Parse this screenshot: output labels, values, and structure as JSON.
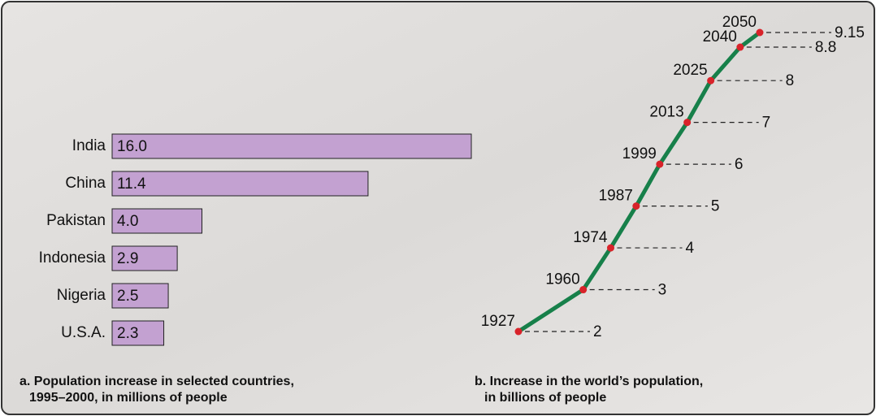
{
  "chart_data": [
    {
      "type": "bar",
      "orientation": "horizontal",
      "caption": [
        "a. Population increase in selected countries,",
        "1995–2000, in millions of people"
      ],
      "categories": [
        "India",
        "China",
        "Pakistan",
        "Indonesia",
        "Nigeria",
        "U.S.A."
      ],
      "values": [
        16.0,
        11.4,
        4.0,
        2.9,
        2.5,
        2.3
      ],
      "value_labels": [
        "16.0",
        "11.4",
        "4.0",
        "2.9",
        "2.5",
        "2.3"
      ],
      "color": "#c3a1d1"
    },
    {
      "type": "line",
      "caption": [
        "b. Increase in the world’s population,",
        "in billions of people"
      ],
      "x": [
        1927,
        1960,
        1974,
        1987,
        1999,
        2013,
        2025,
        2040,
        2050
      ],
      "values": [
        2,
        3,
        4,
        5,
        6,
        7,
        8,
        8.8,
        9.15
      ],
      "color": "#17804a",
      "marker_color": "#d8232a"
    }
  ]
}
